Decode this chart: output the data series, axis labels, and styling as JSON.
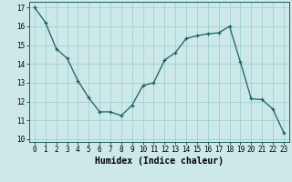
{
  "x": [
    0,
    1,
    2,
    3,
    4,
    5,
    6,
    7,
    8,
    9,
    10,
    11,
    12,
    13,
    14,
    15,
    16,
    17,
    18,
    19,
    20,
    21,
    22,
    23
  ],
  "y": [
    17.0,
    16.2,
    14.8,
    14.3,
    13.1,
    12.2,
    11.45,
    11.45,
    11.25,
    11.8,
    12.85,
    13.0,
    14.2,
    14.6,
    15.35,
    15.5,
    15.6,
    15.65,
    16.0,
    14.1,
    12.15,
    12.1,
    11.6,
    10.35
  ],
  "xlabel": "Humidex (Indice chaleur)",
  "bg_color": "#cce8e8",
  "line_color": "#1a5f5f",
  "grid_color": "#99cccc",
  "xlim": [
    -0.5,
    23.5
  ],
  "ylim": [
    9.85,
    17.3
  ],
  "yticks": [
    10,
    11,
    12,
    13,
    14,
    15,
    16,
    17
  ],
  "xticks": [
    0,
    1,
    2,
    3,
    4,
    5,
    6,
    7,
    8,
    9,
    10,
    11,
    12,
    13,
    14,
    15,
    16,
    17,
    18,
    19,
    20,
    21,
    22,
    23
  ],
  "tick_fontsize": 5.5,
  "xlabel_fontsize": 7.0,
  "linewidth": 0.9,
  "markersize": 3.5
}
